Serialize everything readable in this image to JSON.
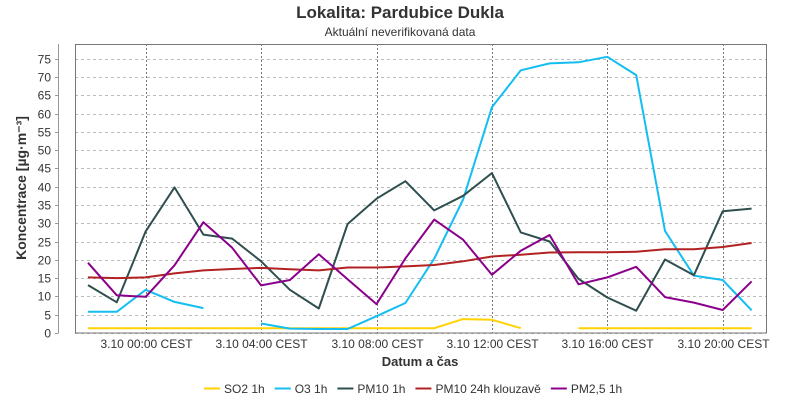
{
  "chart_data": {
    "type": "line",
    "title": "Lokalita: Pardubice Dukla",
    "subtitle": "Aktuální neverifikovaná data",
    "xlabel": "Datum a čas",
    "ylabel": "Koncentrace [µg·m⁻³]",
    "ylim": [
      0,
      79
    ],
    "yticks": [
      0,
      5,
      10,
      15,
      20,
      25,
      30,
      35,
      40,
      45,
      50,
      55,
      60,
      65,
      70,
      75
    ],
    "x_hours": [
      -2,
      -1,
      0,
      1,
      2,
      3,
      4,
      5,
      6,
      7,
      8,
      9,
      10,
      11,
      12,
      13,
      14,
      15,
      16,
      17,
      18,
      19,
      20,
      21
    ],
    "xlim_hours": [
      -2.45,
      21.5
    ],
    "xticks": [
      {
        "hour": 0,
        "label": "3.10 00:00 CEST"
      },
      {
        "hour": 4,
        "label": "3.10 04:00 CEST"
      },
      {
        "hour": 8,
        "label": "3.10 08:00 CEST"
      },
      {
        "hour": 12,
        "label": "3.10 12:00 CEST"
      },
      {
        "hour": 16,
        "label": "3.10 16:00 CEST"
      },
      {
        "hour": 20,
        "label": "3.10 20:00 CEST"
      }
    ],
    "grid": true,
    "legend_position": "bottom",
    "series": [
      {
        "name": "SO2 1h",
        "color": "#ffd200",
        "values": [
          1.3,
          1.3,
          1.3,
          1.3,
          1.3,
          1.3,
          1.3,
          1.3,
          1.3,
          1.3,
          1.3,
          1.3,
          1.3,
          3.8,
          3.6,
          1.3,
          null,
          1.3,
          1.3,
          1.3,
          1.3,
          1.3,
          1.3,
          1.3
        ]
      },
      {
        "name": "O3 1h",
        "color": "#14bef0",
        "values": [
          5.8,
          5.8,
          11.8,
          8.5,
          6.8,
          null,
          2.6,
          1.2,
          1.1,
          1.1,
          4.6,
          8.2,
          20.3,
          36.5,
          61.7,
          71.8,
          73.7,
          74,
          75.5,
          70.5,
          27.9,
          15.7,
          14.5,
          6.2
        ]
      },
      {
        "name": "PM10 1h",
        "color": "#2f4f4f",
        "values": [
          13.1,
          8.4,
          27.8,
          39.8,
          26.9,
          25.8,
          19.6,
          11.8,
          6.7,
          29.8,
          36.7,
          41.5,
          33.5,
          37.5,
          43.7,
          27.5,
          25,
          14.8,
          9.7,
          6.1,
          20.1,
          15.8,
          33.3,
          34
        ]
      },
      {
        "name": "PM10 24h klouzavě",
        "color": "#b22222",
        "values": [
          15.2,
          15,
          15.2,
          16.3,
          17.1,
          17.5,
          17.8,
          17.4,
          17.1,
          17.9,
          17.9,
          18.2,
          18.6,
          19.6,
          20.9,
          21.4,
          22,
          22.1,
          22.1,
          22.2,
          22.9,
          22.9,
          23.5,
          24.6
        ]
      },
      {
        "name": "PM2,5 1h",
        "color": "#8b008b",
        "values": [
          19.2,
          10.3,
          9.9,
          18.5,
          30.3,
          23.3,
          13,
          14.5,
          21.5,
          14.7,
          7.9,
          20.4,
          31,
          25.5,
          15.9,
          22.5,
          26.8,
          13.3,
          15.2,
          18.1,
          9.8,
          8.3,
          6.3,
          14.1
        ]
      }
    ]
  }
}
